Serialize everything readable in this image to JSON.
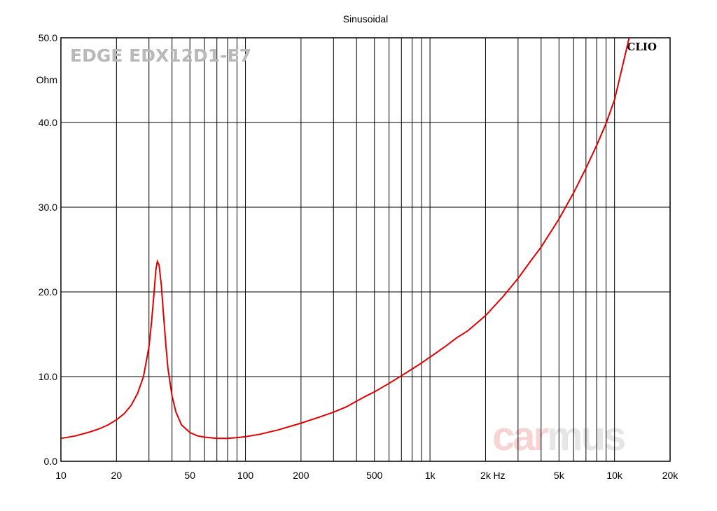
{
  "title": "Sinusoidal",
  "model": "EDGE EDX12D1-E7",
  "brand": "CLIO",
  "watermark": {
    "part1": "car",
    "part2": "mus"
  },
  "colors": {
    "curve": "#e00000",
    "grid": "#000000",
    "watermark1": "#f7d4d4",
    "watermark2": "#e6e6e6"
  },
  "chart_data": {
    "type": "line",
    "title": "Sinusoidal",
    "xlabel": "Hz",
    "ylabel": "Ohm",
    "x_scale": "log",
    "xlim": [
      10,
      20000
    ],
    "ylim": [
      0,
      50
    ],
    "grid": true,
    "x_ticks": [
      {
        "v": 10,
        "label": "10"
      },
      {
        "v": 20,
        "label": "20"
      },
      {
        "v": 50,
        "label": "50"
      },
      {
        "v": 100,
        "label": "100"
      },
      {
        "v": 200,
        "label": "200"
      },
      {
        "v": 500,
        "label": "500"
      },
      {
        "v": 1000,
        "label": "1k"
      },
      {
        "v": 2000,
        "label": "2k"
      },
      {
        "v": 5000,
        "label": "5k"
      },
      {
        "v": 10000,
        "label": "10k"
      },
      {
        "v": 20000,
        "label": "20k"
      }
    ],
    "y_ticks": [
      {
        "v": 0,
        "label": "0.0"
      },
      {
        "v": 10,
        "label": "10.0"
      },
      {
        "v": 20,
        "label": "20.0"
      },
      {
        "v": 30,
        "label": "30.0"
      },
      {
        "v": 40,
        "label": "40.0"
      },
      {
        "v": 50,
        "label": "50.0"
      }
    ],
    "series": [
      {
        "points": [
          [
            10,
            2.7
          ],
          [
            12,
            3.0
          ],
          [
            14,
            3.4
          ],
          [
            16,
            3.8
          ],
          [
            18,
            4.3
          ],
          [
            20,
            4.9
          ],
          [
            22,
            5.6
          ],
          [
            24,
            6.6
          ],
          [
            26,
            8.0
          ],
          [
            28,
            10.0
          ],
          [
            30,
            13.5
          ],
          [
            31,
            16.5
          ],
          [
            32,
            20.0
          ],
          [
            32.7,
            22.6
          ],
          [
            33.3,
            23.6
          ],
          [
            34,
            23.2
          ],
          [
            35,
            20.8
          ],
          [
            36,
            17.2
          ],
          [
            37,
            13.8
          ],
          [
            38,
            11.0
          ],
          [
            40,
            7.7
          ],
          [
            42,
            5.8
          ],
          [
            45,
            4.3
          ],
          [
            50,
            3.4
          ],
          [
            55,
            3.0
          ],
          [
            60,
            2.85
          ],
          [
            70,
            2.7
          ],
          [
            80,
            2.7
          ],
          [
            90,
            2.8
          ],
          [
            100,
            2.9
          ],
          [
            120,
            3.2
          ],
          [
            150,
            3.7
          ],
          [
            200,
            4.5
          ],
          [
            250,
            5.2
          ],
          [
            300,
            5.8
          ],
          [
            350,
            6.4
          ],
          [
            400,
            7.1
          ],
          [
            450,
            7.7
          ],
          [
            500,
            8.2
          ],
          [
            600,
            9.2
          ],
          [
            700,
            10.1
          ],
          [
            800,
            10.9
          ],
          [
            900,
            11.6
          ],
          [
            1000,
            12.3
          ],
          [
            1200,
            13.5
          ],
          [
            1400,
            14.6
          ],
          [
            1600,
            15.4
          ],
          [
            2000,
            17.2
          ],
          [
            2500,
            19.5
          ],
          [
            3000,
            21.6
          ],
          [
            3500,
            23.6
          ],
          [
            4000,
            25.3
          ],
          [
            5000,
            28.6
          ],
          [
            6000,
            31.7
          ],
          [
            7000,
            34.6
          ],
          [
            8000,
            37.3
          ],
          [
            9000,
            39.9
          ],
          [
            10000,
            42.7
          ],
          [
            11000,
            46.5
          ],
          [
            12000,
            50.0
          ]
        ]
      }
    ]
  }
}
